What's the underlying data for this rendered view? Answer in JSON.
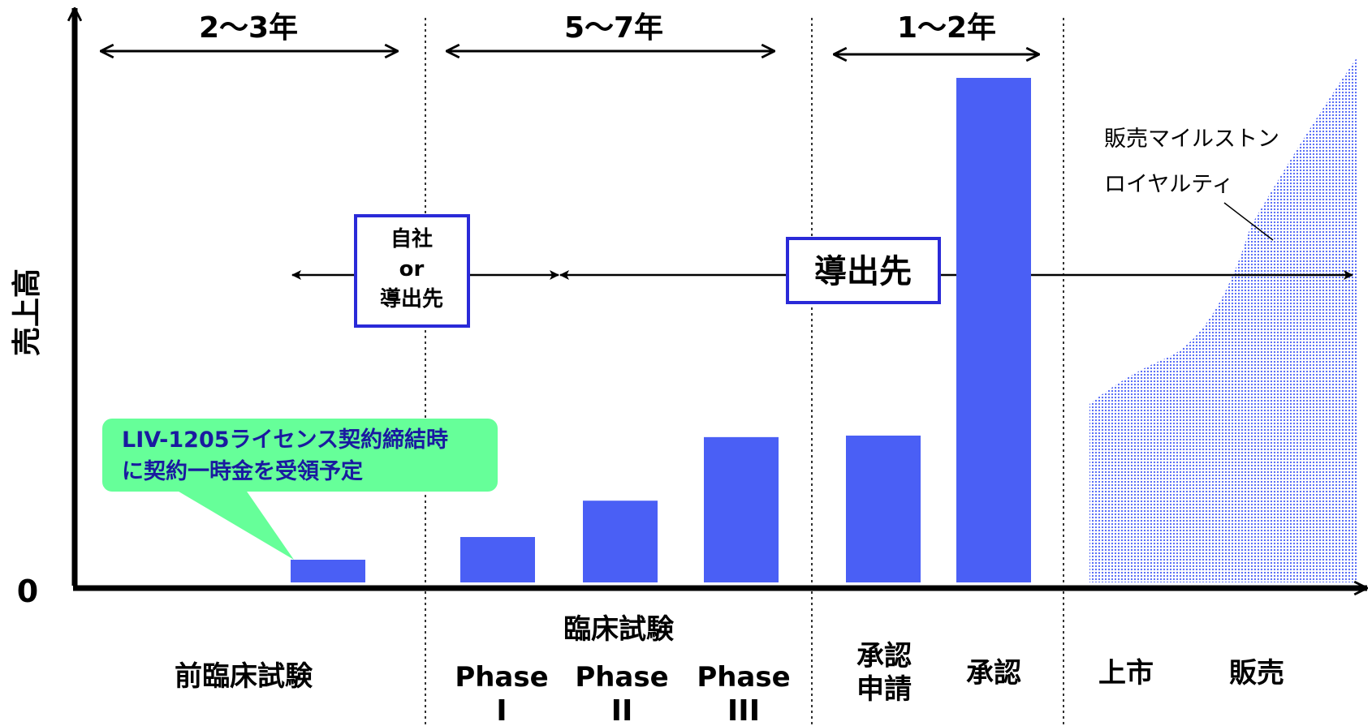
{
  "axis": {
    "y_label": "売上高",
    "zero_label": "0"
  },
  "durations": [
    {
      "label": "2〜3年"
    },
    {
      "label": "5〜7年"
    },
    {
      "label": "1〜2年"
    }
  ],
  "phases": {
    "preclinical": "前臨床試験",
    "clinical": "臨床試験",
    "phase1": {
      "name": "Phase",
      "numeral": "I"
    },
    "phase2": {
      "name": "Phase",
      "numeral": "II"
    },
    "phase3": {
      "name": "Phase",
      "numeral": "III"
    },
    "filing": {
      "line1": "承認",
      "line2": "申請"
    },
    "approval": "承認",
    "launch": "上市",
    "sales": "販売"
  },
  "boxes": {
    "self_or_licensee": {
      "line1": "自社",
      "line2": "or",
      "line3": "導出先"
    },
    "licensee": "導出先"
  },
  "callout": {
    "line1": "LIV-1205ライセンス契約締結時",
    "line2": "に契約一時金を受領予定"
  },
  "annotations": {
    "milestone": "販売マイルストン",
    "royalty": "ロイヤルティ"
  },
  "bar_values_relative": [
    0.045,
    0.09,
    0.162,
    0.288,
    0.291,
    1.0
  ],
  "colors": {
    "bar": "#4a5ff5",
    "box_border": "#2a2ad8",
    "callout": "#66ff99",
    "area": "#4a5ff5"
  }
}
